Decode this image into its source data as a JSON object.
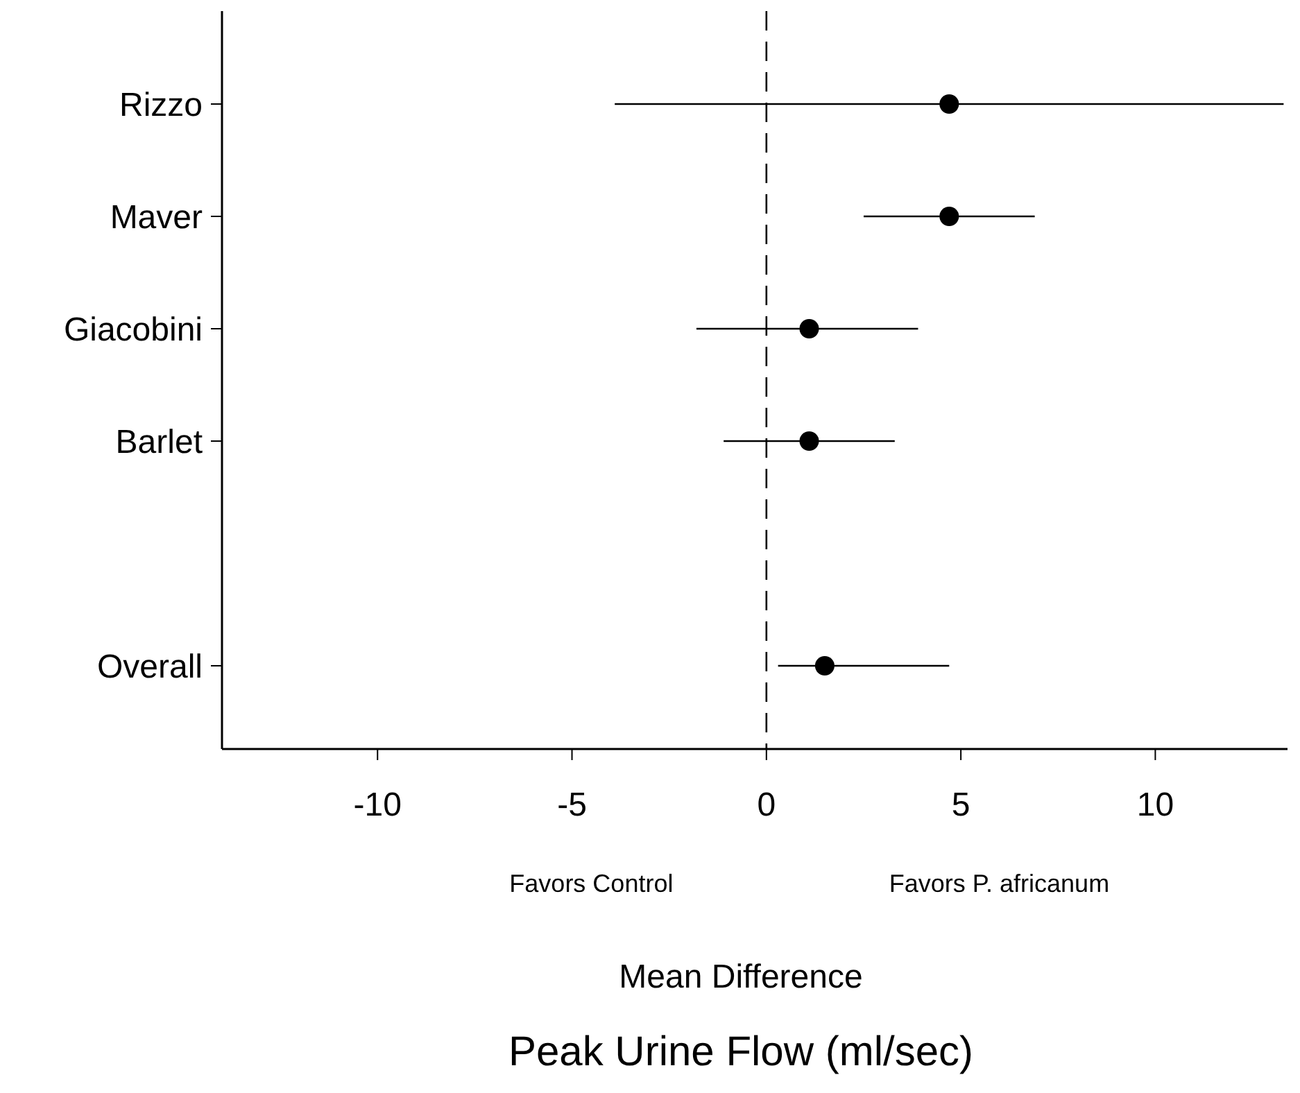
{
  "chart_data": {
    "type": "scatter",
    "orientation": "horizontal",
    "title": "Peak Urine Flow (ml/sec)",
    "xlabel": "Mean Difference",
    "categories": [
      "Rizzo",
      "Maver",
      "Giacobini",
      "Barlet",
      null,
      "Overall"
    ],
    "values": [
      4.7,
      4.7,
      1.1,
      1.1,
      null,
      1.5
    ],
    "errors": [
      [
        -3.9,
        13.3
      ],
      [
        2.5,
        6.9
      ],
      [
        -1.8,
        3.9
      ],
      [
        -1.1,
        3.3
      ],
      null,
      [
        0.3,
        4.7
      ]
    ],
    "color": "#000000",
    "marker": "circle",
    "xlim": [
      -14,
      13.4
    ],
    "xticks": [
      -10,
      -5,
      0,
      5,
      10
    ],
    "ref_lines": [
      {
        "axis": "x",
        "value": 0,
        "line_style": "dashed"
      }
    ],
    "annotations": [
      "Favors Control",
      "Favors P. africanum"
    ],
    "grid": false
  }
}
